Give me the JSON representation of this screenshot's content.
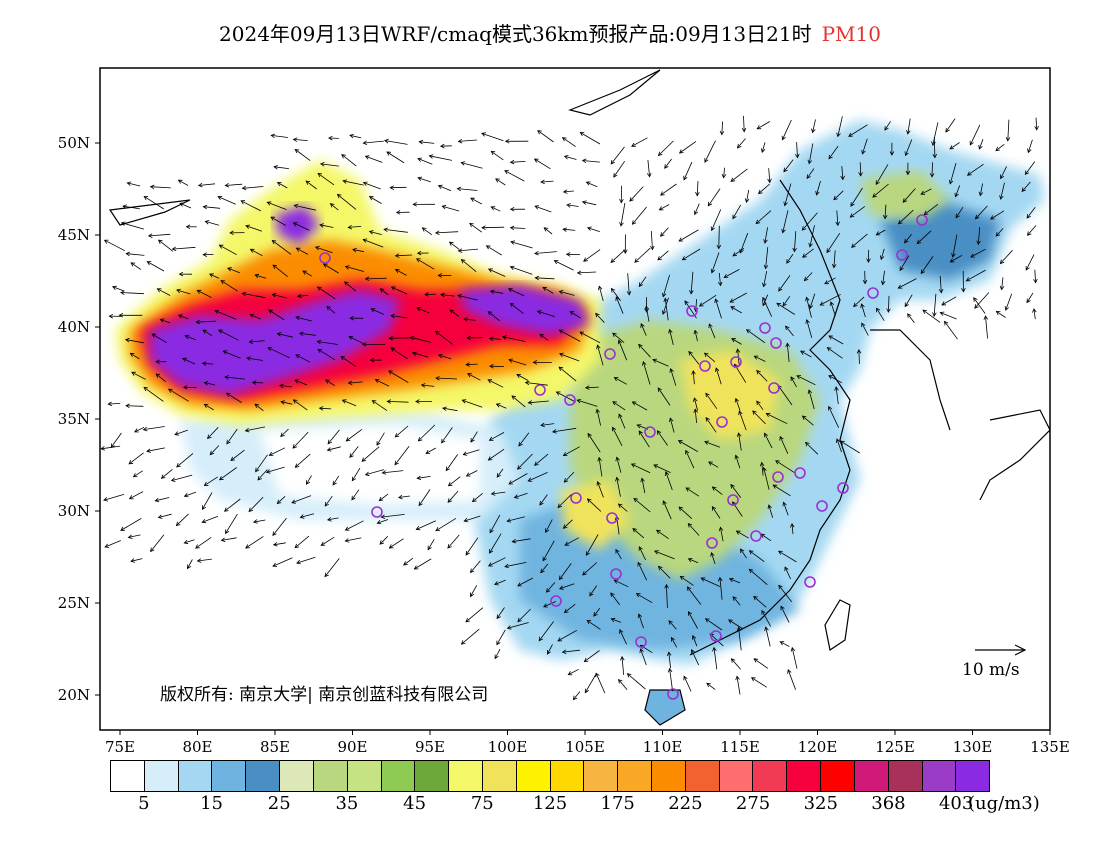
{
  "title": {
    "main": "2024年09月13日WRF/cmaq模式36km预报产品:09月13日21时",
    "variable": "PM10"
  },
  "axes": {
    "x_ticks": [
      "75E",
      "80E",
      "85E",
      "90E",
      "95E",
      "100E",
      "105E",
      "110E",
      "115E",
      "120E",
      "125E",
      "130E",
      "135E"
    ],
    "y_ticks": [
      "50N",
      "45N",
      "40N",
      "35N",
      "30N",
      "25N",
      "20N"
    ]
  },
  "copyright": "版权所有: 南京大学| 南京创蓝科技有限公司",
  "wind_scale_label": "10 m/s",
  "colorbar": {
    "colors": [
      "#ffffff",
      "#d6eefa",
      "#a4d8f2",
      "#6fb4e0",
      "#4a8fc4",
      "#dde8b8",
      "#b9d77e",
      "#c6e383",
      "#8fca53",
      "#6ea83a",
      "#f4f768",
      "#f0e35b",
      "#fff200",
      "#fed800",
      "#f6b540",
      "#f9a825",
      "#fb8c00",
      "#f26130",
      "#ff6e6e",
      "#f23a55",
      "#f5003c",
      "#ff0000",
      "#d01878",
      "#a8305a",
      "#9b3cc6",
      "#8a2be2"
    ],
    "labels": [
      "5",
      "15",
      "25",
      "35",
      "45",
      "75",
      "125",
      "175",
      "225",
      "275",
      "325",
      "368",
      "403"
    ],
    "units": "(ug/m3)"
  }
}
